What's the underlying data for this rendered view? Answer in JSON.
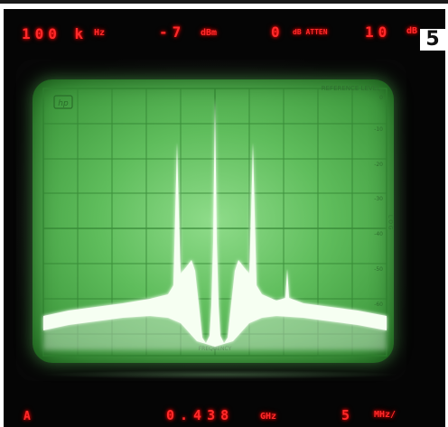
{
  "badge": "5",
  "top_readout": {
    "resolution_value": "100 k",
    "resolution_unit": "Hz",
    "reference_value": "-7",
    "reference_unit": "dBm",
    "atten_value": "0",
    "atten_unit": "dB ATTEN",
    "scale_value": "10",
    "scale_unit": "dB"
  },
  "screen": {
    "hp_logo": "hp",
    "reference_label": "REFERENCE LEVEL",
    "frequency_label": "FREQUENCY",
    "right_scale": [
      "0",
      "-10",
      "-20",
      "-30",
      "-40",
      "-50",
      "-60"
    ],
    "log_label": "L O G"
  },
  "bottom_readout": {
    "mode": "A",
    "center_value": "0.438",
    "center_unit": "GHz",
    "span_value": "5",
    "span_unit": "MHz/"
  },
  "colors": {
    "led": "#ff2a2a",
    "phosphor": "#5fbd5c",
    "trace": "#f6fff2"
  }
}
